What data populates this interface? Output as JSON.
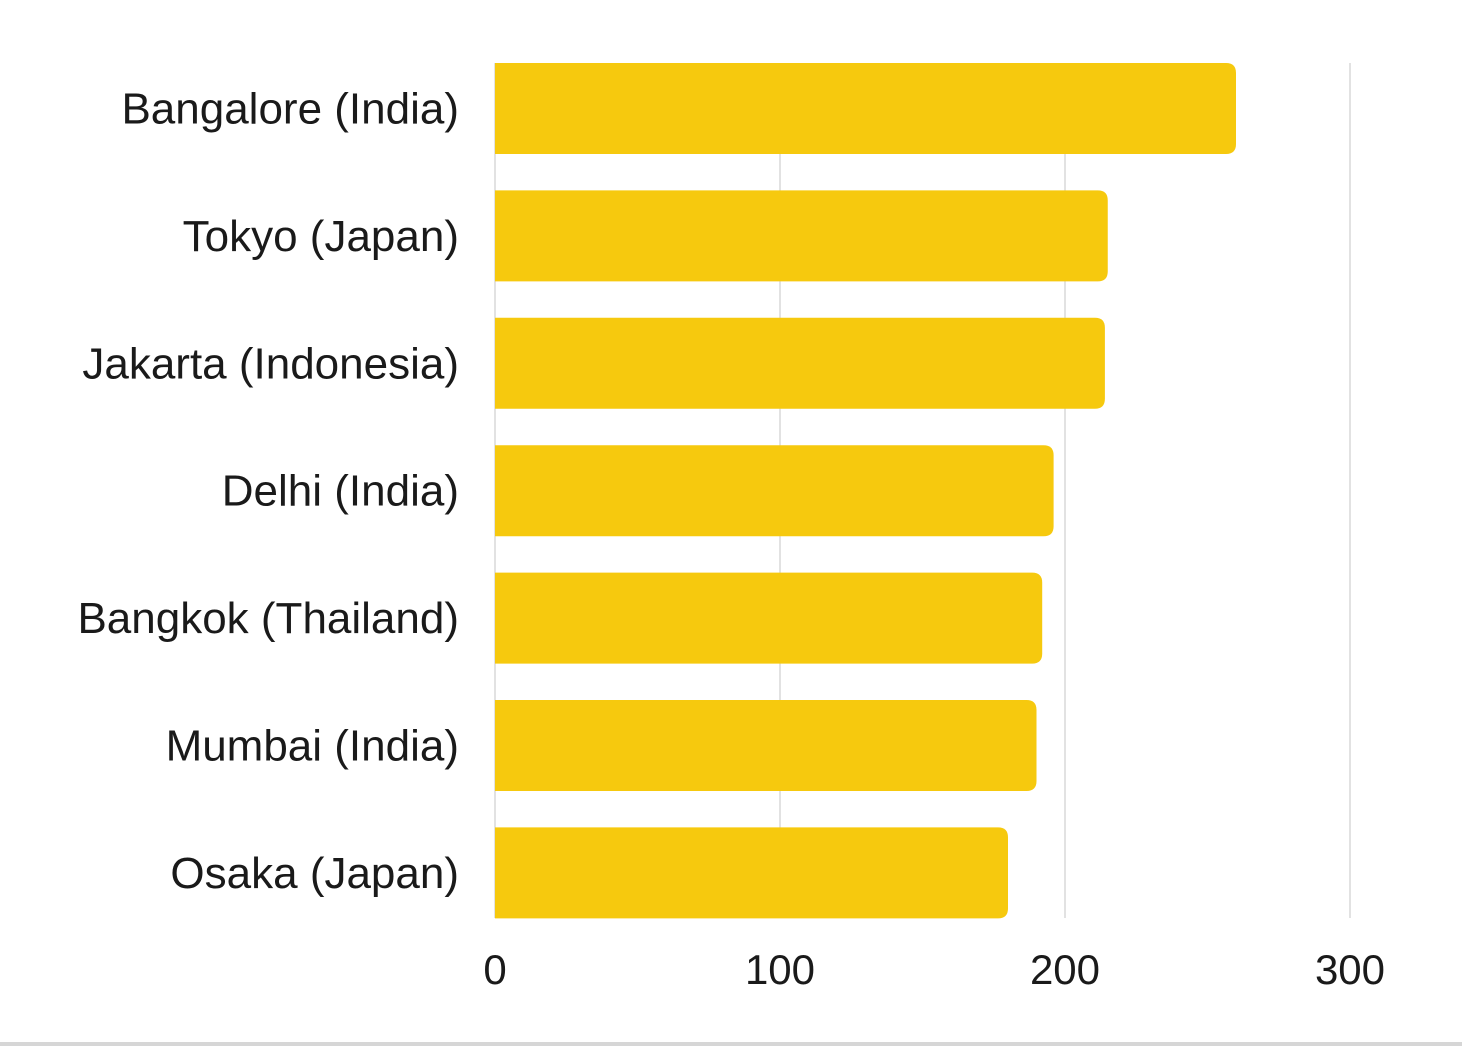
{
  "chart_data": {
    "type": "bar",
    "orientation": "horizontal",
    "categories": [
      "Bangalore (India)",
      "Tokyo (Japan)",
      "Jakarta (Indonesia)",
      "Delhi (India)",
      "Bangkok (Thailand)",
      "Mumbai (India)",
      "Osaka (Japan)"
    ],
    "values": [
      260,
      215,
      214,
      196,
      192,
      190,
      180
    ],
    "xlim": [
      0,
      300
    ],
    "xticks": [
      "0",
      "100",
      "200",
      "300"
    ],
    "title": "",
    "xlabel": "",
    "ylabel": "",
    "grid": true,
    "legend": "none",
    "bar_color": "#F6C90E",
    "grid_color": "#d9d9d9",
    "text_color": "#1a1a1a"
  }
}
